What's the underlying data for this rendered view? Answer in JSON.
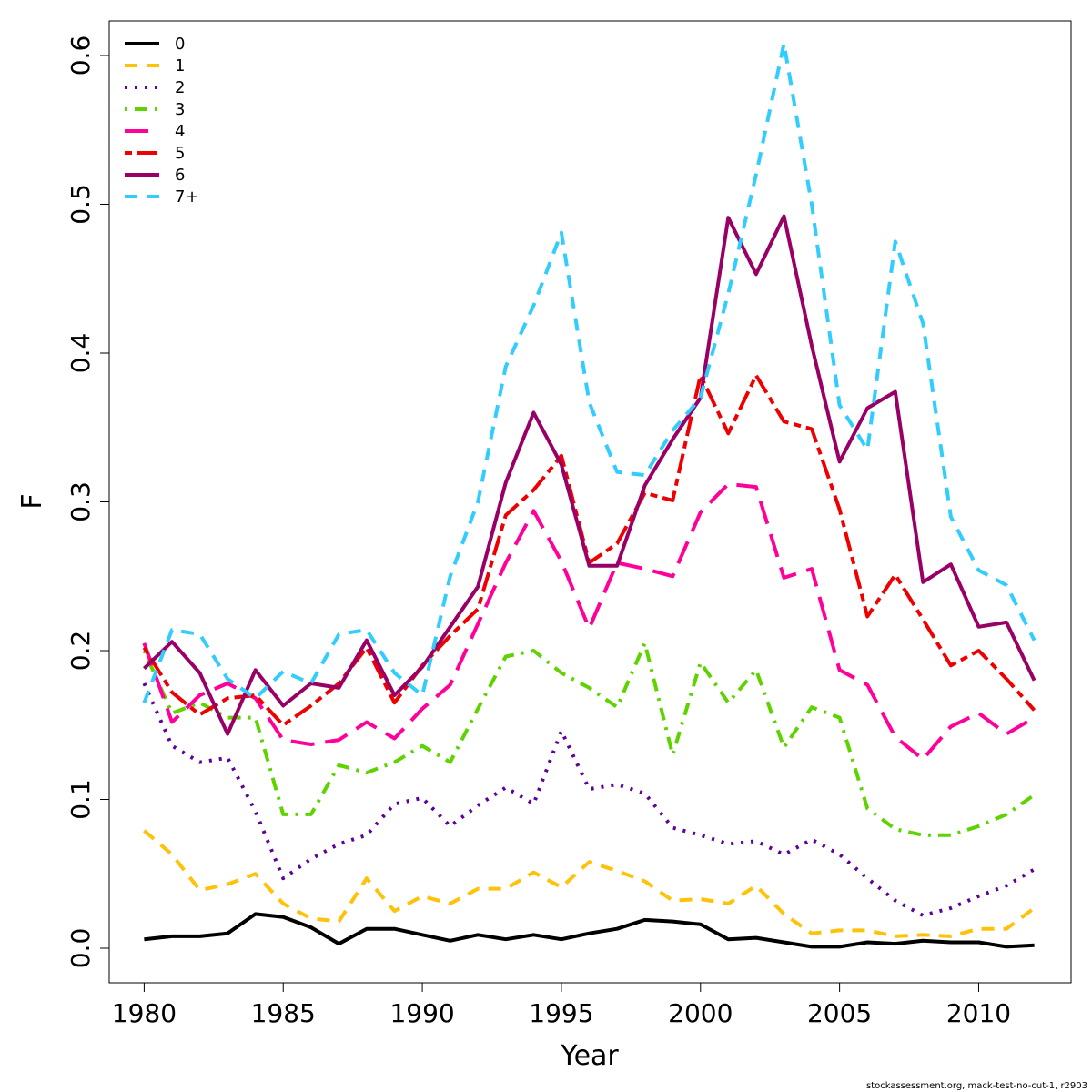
{
  "footer": "stockassessment.org, mack-test-no-cut-1, r2903",
  "chart_data": {
    "type": "line",
    "xlabel": "Year",
    "ylabel": "F",
    "xlim": [
      1980,
      2012
    ],
    "ylim": [
      0.0,
      0.6
    ],
    "x_ticks": [
      1980,
      1985,
      1990,
      1995,
      2000,
      2005,
      2010
    ],
    "y_ticks": [
      "0.0",
      "0.1",
      "0.2",
      "0.3",
      "0.4",
      "0.5",
      "0.6"
    ],
    "grid": false,
    "legend_position": "top-left",
    "x": [
      1980,
      1981,
      1982,
      1983,
      1984,
      1985,
      1986,
      1987,
      1988,
      1989,
      1990,
      1991,
      1992,
      1993,
      1994,
      1995,
      1996,
      1997,
      1998,
      1999,
      2000,
      2001,
      2002,
      2003,
      2004,
      2005,
      2006,
      2007,
      2008,
      2009,
      2010,
      2011,
      2012
    ],
    "series": [
      {
        "name": "0",
        "color": "#000000",
        "dash": "solid",
        "values": [
          0.006,
          0.008,
          0.008,
          0.01,
          0.023,
          0.021,
          0.014,
          0.003,
          0.013,
          0.013,
          0.009,
          0.005,
          0.009,
          0.006,
          0.009,
          0.006,
          0.01,
          0.013,
          0.019,
          0.018,
          0.016,
          0.006,
          0.007,
          0.004,
          0.001,
          0.001,
          0.004,
          0.003,
          0.005,
          0.004,
          0.004,
          0.001,
          0.002
        ]
      },
      {
        "name": "1",
        "color": "#FFC20A",
        "dash": "dashed",
        "values": [
          0.079,
          0.063,
          0.039,
          0.043,
          0.05,
          0.03,
          0.02,
          0.018,
          0.047,
          0.025,
          0.035,
          0.03,
          0.04,
          0.04,
          0.051,
          0.041,
          0.058,
          0.052,
          0.045,
          0.032,
          0.033,
          0.03,
          0.042,
          0.023,
          0.01,
          0.012,
          0.012,
          0.008,
          0.009,
          0.008,
          0.013,
          0.013,
          0.027
        ]
      },
      {
        "name": "2",
        "color": "#5E0199",
        "dash": "dotted",
        "values": [
          0.178,
          0.136,
          0.125,
          0.128,
          0.092,
          0.047,
          0.06,
          0.07,
          0.076,
          0.097,
          0.101,
          0.082,
          0.096,
          0.108,
          0.097,
          0.146,
          0.107,
          0.11,
          0.104,
          0.081,
          0.076,
          0.07,
          0.072,
          0.063,
          0.073,
          0.063,
          0.047,
          0.032,
          0.022,
          0.027,
          0.035,
          0.042,
          0.053
        ]
      },
      {
        "name": "3",
        "color": "#5FD300",
        "dash": "dotdash",
        "values": [
          0.2,
          0.158,
          0.165,
          0.155,
          0.155,
          0.09,
          0.09,
          0.123,
          0.118,
          0.125,
          0.136,
          0.125,
          0.161,
          0.196,
          0.2,
          0.185,
          0.175,
          0.162,
          0.205,
          0.13,
          0.192,
          0.165,
          0.187,
          0.135,
          0.162,
          0.155,
          0.094,
          0.08,
          0.076,
          0.076,
          0.082,
          0.09,
          0.103
        ]
      },
      {
        "name": "4",
        "color": "#FF0099",
        "dash": "longdash",
        "values": [
          0.205,
          0.152,
          0.17,
          0.178,
          0.168,
          0.14,
          0.137,
          0.14,
          0.152,
          0.141,
          0.161,
          0.177,
          0.218,
          0.259,
          0.294,
          0.26,
          0.215,
          0.259,
          0.255,
          0.25,
          0.293,
          0.312,
          0.31,
          0.249,
          0.255,
          0.187,
          0.177,
          0.142,
          0.127,
          0.149,
          0.158,
          0.144,
          0.155
        ]
      },
      {
        "name": "5",
        "color": "#EE0000",
        "dash": "twodash",
        "values": [
          0.202,
          0.172,
          0.157,
          0.168,
          0.17,
          0.15,
          0.163,
          0.178,
          0.202,
          0.165,
          0.19,
          0.21,
          0.228,
          0.291,
          0.308,
          0.331,
          0.259,
          0.272,
          0.306,
          0.301,
          0.385,
          0.346,
          0.385,
          0.354,
          0.349,
          0.295,
          0.223,
          0.251,
          0.221,
          0.19,
          0.2,
          0.181,
          0.16
        ]
      },
      {
        "name": "6",
        "color": "#990066",
        "dash": "solid",
        "values": [
          0.188,
          0.206,
          0.185,
          0.144,
          0.187,
          0.163,
          0.178,
          0.175,
          0.207,
          0.17,
          0.189,
          0.216,
          0.243,
          0.313,
          0.36,
          0.325,
          0.257,
          0.257,
          0.311,
          0.342,
          0.37,
          0.491,
          0.453,
          0.492,
          0.405,
          0.327,
          0.363,
          0.374,
          0.246,
          0.258,
          0.216,
          0.219,
          0.18
        ]
      },
      {
        "name": "7+",
        "color": "#33CCFF",
        "dash": "dashed",
        "values": [
          0.165,
          0.214,
          0.211,
          0.181,
          0.168,
          0.186,
          0.178,
          0.211,
          0.214,
          0.185,
          0.17,
          0.25,
          0.3,
          0.391,
          0.432,
          0.481,
          0.367,
          0.32,
          0.318,
          0.348,
          0.37,
          0.44,
          0.52,
          0.608,
          0.5,
          0.365,
          0.335,
          0.475,
          0.42,
          0.29,
          0.254,
          0.244,
          0.207
        ]
      }
    ]
  }
}
